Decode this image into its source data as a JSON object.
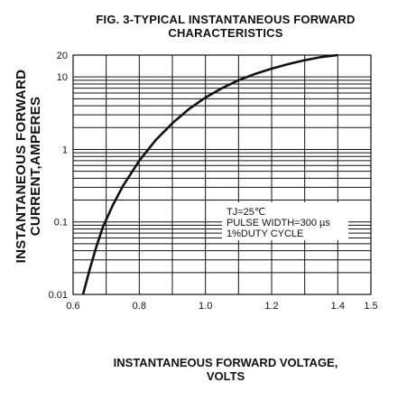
{
  "chart_data": {
    "type": "line",
    "title": "FIG. 3-TYPICAL INSTANTANEOUS FORWARD CHARACTERISTICS",
    "title_lines": [
      "FIG. 3-TYPICAL INSTANTANEOUS FORWARD",
      "CHARACTERISTICS"
    ],
    "xlabel": "INSTANTANEOUS FORWARD VOLTAGE, VOLTS",
    "xlabel_lines": [
      "INSTANTANEOUS FORWARD VOLTAGE,",
      "VOLTS"
    ],
    "ylabel": "INSTANTANEOUS FORWARD CURRENT,AMPERES",
    "ylabel_lines": [
      "INSTANTANEOUS FORWARD",
      "CURRENT,AMPERES"
    ],
    "xlim": [
      0.6,
      1.5
    ],
    "ylim": [
      0.01,
      20
    ],
    "yscale": "log",
    "grid": true,
    "x_ticks": [
      0.6,
      0.8,
      1.0,
      1.2,
      1.4,
      1.5
    ],
    "x_tick_labels": [
      "0.6",
      "0.8",
      "1.0",
      "1.2",
      "1.4",
      "1.5"
    ],
    "y_ticks": [
      0.01,
      0.1,
      1,
      10,
      20
    ],
    "y_tick_labels": [
      "0.01",
      "0.1",
      "1",
      "10",
      "20"
    ],
    "annotation": [
      "TJ=25℃",
      "PULSE WIDTH=300 µs",
      "1%DUTY CYCLE"
    ],
    "series": [
      {
        "x": [
          0.63,
          0.65,
          0.67,
          0.69,
          0.72,
          0.75,
          0.8,
          0.85,
          0.9,
          0.95,
          1.0,
          1.05,
          1.1,
          1.15,
          1.2,
          1.25,
          1.3,
          1.35,
          1.4
        ],
        "y": [
          0.01,
          0.022,
          0.045,
          0.085,
          0.17,
          0.31,
          0.7,
          1.35,
          2.3,
          3.6,
          5.2,
          7.0,
          9.0,
          11.0,
          13.0,
          15.0,
          17.0,
          18.8,
          20.0
        ]
      }
    ],
    "colors": {
      "line": "#111111",
      "grid": "#111111"
    }
  }
}
